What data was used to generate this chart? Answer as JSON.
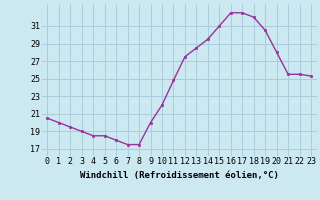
{
  "hours": [
    0,
    1,
    2,
    3,
    4,
    5,
    6,
    7,
    8,
    9,
    10,
    11,
    12,
    13,
    14,
    15,
    16,
    17,
    18,
    19,
    20,
    21,
    22,
    23
  ],
  "values": [
    20.5,
    20.0,
    19.5,
    19.0,
    18.5,
    18.5,
    18.0,
    17.5,
    17.5,
    20.0,
    22.0,
    24.8,
    27.5,
    28.5,
    29.5,
    31.0,
    32.5,
    32.5,
    32.0,
    30.5,
    28.0,
    25.5,
    25.5,
    25.3
  ],
  "line_color": "#993399",
  "marker": "s",
  "markersize": 2.0,
  "linewidth": 1.0,
  "xlabel": "Windchill (Refroidissement éolien,°C)",
  "xlabel_fontsize": 6.5,
  "ylabel_ticks": [
    17,
    19,
    21,
    23,
    25,
    27,
    29,
    31
  ],
  "ylim": [
    16.2,
    33.5
  ],
  "xlim": [
    -0.5,
    23.5
  ],
  "bg_color": "#cce8f0",
  "grid_color": "#aaccdd",
  "tick_fontsize": 6.0,
  "title": ""
}
